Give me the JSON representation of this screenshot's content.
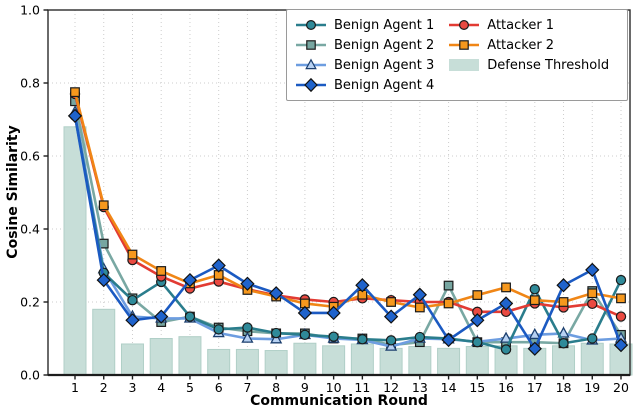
{
  "chart_data": {
    "type": "line",
    "title": "",
    "xlabel": "Communication Round",
    "ylabel": "Cosine Similarity",
    "x": [
      1,
      2,
      3,
      4,
      5,
      6,
      7,
      8,
      9,
      10,
      11,
      12,
      13,
      14,
      15,
      16,
      17,
      18,
      19,
      20
    ],
    "ylim": [
      0.0,
      1.0
    ],
    "yticks": [
      0.0,
      0.2,
      0.4,
      0.6,
      0.8,
      1.0
    ],
    "ytick_labels": [
      "0.0",
      "0.2",
      "0.4",
      "0.6",
      "0.8",
      "1.0"
    ],
    "grid": "dotted, vertical at each round and horizontal at 0.2 steps",
    "legend_position": "upper right inside plot, 2 columns",
    "bars": {
      "name": "Defense Threshold",
      "color": "#c7ded8",
      "edge_color": "#b0cfc7",
      "values": [
        0.68,
        0.18,
        0.085,
        0.1,
        0.105,
        0.07,
        0.07,
        0.067,
        0.087,
        0.08,
        0.085,
        0.073,
        0.078,
        0.073,
        0.078,
        0.08,
        0.073,
        0.08,
        0.087,
        0.085
      ]
    },
    "series": [
      {
        "name": "Benign Agent 1",
        "marker": "circle",
        "color": "#2a7d8c",
        "marker_fill": "#2f8a99",
        "marker_edge": "#1a1a1a",
        "values": [
          0.71,
          0.28,
          0.205,
          0.255,
          0.16,
          0.125,
          0.13,
          0.115,
          0.11,
          0.105,
          0.098,
          0.095,
          0.104,
          0.1,
          0.09,
          0.07,
          0.235,
          0.087,
          0.1,
          0.26
        ]
      },
      {
        "name": "Benign Agent 2",
        "marker": "square",
        "color": "#79a8a3",
        "marker_fill": "#77a6a1",
        "marker_edge": "#1a1a1a",
        "values": [
          0.75,
          0.36,
          0.21,
          0.145,
          0.16,
          0.13,
          0.12,
          0.114,
          0.114,
          0.1,
          0.1,
          0.082,
          0.09,
          0.245,
          0.09,
          0.09,
          0.09,
          0.087,
          0.23,
          0.11
        ]
      },
      {
        "name": "Benign Agent 3",
        "marker": "triangle",
        "color": "#6d9de0",
        "marker_fill": "#b7d1f2",
        "marker_edge": "#1c3f6e",
        "values": [
          0.72,
          0.29,
          0.16,
          0.155,
          0.155,
          0.115,
          0.1,
          0.098,
          0.11,
          0.1,
          0.096,
          0.078,
          0.1,
          0.098,
          0.091,
          0.1,
          0.11,
          0.114,
          0.095,
          0.1
        ]
      },
      {
        "name": "Benign Agent 4",
        "marker": "diamond",
        "color": "#1b5ac2",
        "marker_fill": "#1f63cc",
        "marker_edge": "#111111",
        "values": [
          0.71,
          0.26,
          0.15,
          0.16,
          0.26,
          0.3,
          0.25,
          0.224,
          0.17,
          0.17,
          0.246,
          0.16,
          0.22,
          0.096,
          0.15,
          0.196,
          0.072,
          0.246,
          0.288,
          0.082
        ]
      },
      {
        "name": "Attacker 1",
        "marker": "circle",
        "color": "#e23b33",
        "marker_fill": "#ea4a41",
        "marker_edge": "#1a1a1a",
        "values": [
          0.77,
          0.46,
          0.315,
          0.27,
          0.237,
          0.256,
          0.235,
          0.218,
          0.207,
          0.2,
          0.21,
          0.205,
          0.2,
          0.2,
          0.173,
          0.173,
          0.196,
          0.185,
          0.195,
          0.16
        ]
      },
      {
        "name": "Attacker 2",
        "marker": "square",
        "color": "#f08616",
        "marker_fill": "#f6981d",
        "marker_edge": "#1a1a1a",
        "values": [
          0.775,
          0.465,
          0.33,
          0.285,
          0.251,
          0.274,
          0.233,
          0.215,
          0.196,
          0.187,
          0.22,
          0.2,
          0.185,
          0.196,
          0.219,
          0.24,
          0.205,
          0.2,
          0.224,
          0.21
        ]
      }
    ]
  }
}
